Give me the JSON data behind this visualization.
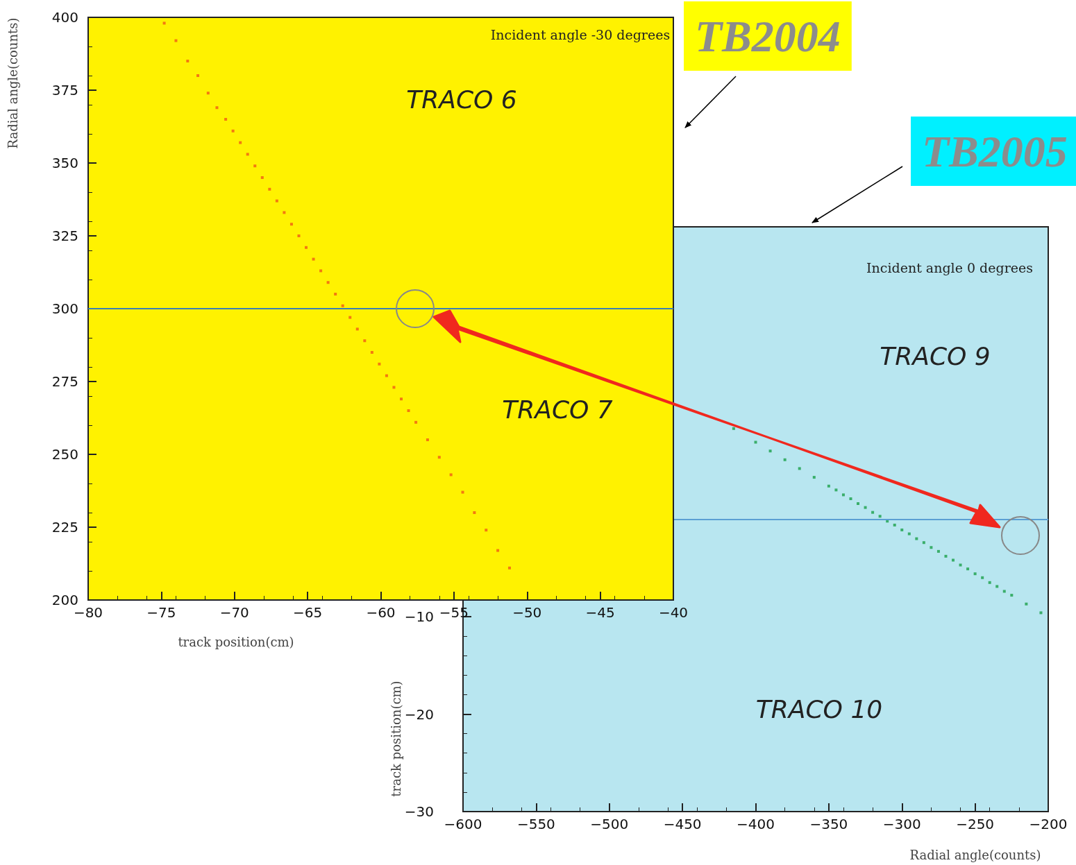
{
  "chart_data": [
    {
      "type": "scatter",
      "title": "TB2004",
      "xlabel": "track position(cm)",
      "ylabel": "Radial angle(counts)",
      "annotations": [
        "Incident angle -30 degrees",
        "TRACO 6",
        "TRACO 7"
      ],
      "x": [
        -74.8,
        -74.0,
        -73.2,
        -72.5,
        -71.8,
        -71.2,
        -70.6,
        -70.1,
        -69.6,
        -69.1,
        -68.6,
        -68.1,
        -67.6,
        -67.1,
        -66.6,
        -66.1,
        -65.6,
        -65.1,
        -64.6,
        -64.1,
        -63.6,
        -63.1,
        -62.6,
        -62.1,
        -61.6,
        -61.1,
        -60.6,
        -60.1,
        -59.6,
        -59.1,
        -58.6,
        -58.1,
        -57.6,
        -56.8,
        -56.0,
        -55.2,
        -54.4,
        -53.6,
        -52.8,
        -52.0,
        -51.2
      ],
      "values": [
        398,
        392,
        385,
        380,
        374,
        369,
        365,
        361,
        357,
        353,
        349,
        345,
        341,
        337,
        333,
        329,
        325,
        321,
        317,
        313,
        309,
        305,
        301,
        297,
        293,
        289,
        285,
        281,
        277,
        273,
        269,
        265,
        261,
        255,
        249,
        243,
        237,
        230,
        224,
        217,
        211
      ],
      "color": "#f05a14",
      "marker": "square",
      "xlim": [
        -80,
        -40
      ],
      "xticks": [
        -80,
        -75,
        -70,
        -65,
        -60,
        -55,
        -50,
        -45,
        -40
      ],
      "ylim": [
        200,
        400
      ],
      "yticks": [
        200,
        225,
        250,
        275,
        300,
        325,
        350,
        375,
        400
      ],
      "ref_lines": [
        {
          "axis": "y",
          "value": 300,
          "color": "#3a7fb5"
        }
      ],
      "grid": false
    },
    {
      "type": "scatter",
      "title": "TB2005",
      "xlabel": "Radial angle(counts)",
      "ylabel": "track position(cm)",
      "annotations": [
        "Incident angle 0 degrees",
        "TRACO 9",
        "TRACO 10"
      ],
      "x": [
        -415,
        -400,
        -390,
        -380,
        -370,
        -360,
        -350,
        -345,
        -340,
        -335,
        -330,
        -325,
        -320,
        -315,
        -310,
        -305,
        -300,
        -295,
        -290,
        -285,
        -280,
        -275,
        -270,
        -265,
        -260,
        -255,
        -250,
        -245,
        -240,
        -235,
        -230,
        -225,
        -215,
        -205
      ],
      "values": [
        9.3,
        7.9,
        7.0,
        6.1,
        5.2,
        4.3,
        3.4,
        3.0,
        2.5,
        2.1,
        1.6,
        1.2,
        0.7,
        0.3,
        -0.2,
        -0.6,
        -1.1,
        -1.5,
        -2.0,
        -2.4,
        -2.9,
        -3.3,
        -3.8,
        -4.2,
        -4.7,
        -5.1,
        -5.6,
        -6.0,
        -6.5,
        -6.9,
        -7.4,
        -7.8,
        -8.7,
        -9.6
      ],
      "color": "#1aa04a",
      "marker": "square",
      "xlim": [
        -600,
        -200
      ],
      "xticks": [
        -600,
        -550,
        -500,
        -450,
        -400,
        -350,
        -300,
        -250,
        -200
      ],
      "ylim": [
        -30,
        30
      ],
      "yticks": [
        -30,
        -20,
        -10
      ],
      "ref_lines": [
        {
          "axis": "y",
          "value": 0,
          "color": "#5a9fd4"
        }
      ],
      "grid": false
    }
  ]
}
